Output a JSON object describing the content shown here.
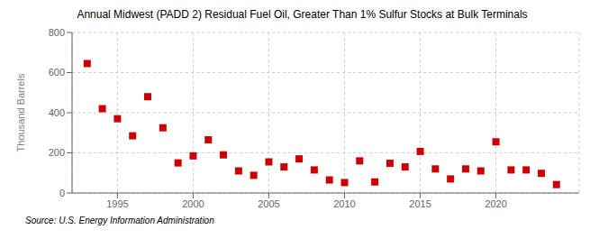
{
  "chart_data": {
    "type": "scatter",
    "title": "Annual Midwest (PADD 2) Residual Fuel Oil, Greater Than 1% Sulfur Stocks at Bulk Terminals",
    "ylabel": "Thousand Barrels",
    "annotations": [
      "Source: U.S. Energy Information Administration"
    ],
    "x": [
      1993,
      1994,
      1995,
      1996,
      1997,
      1998,
      1999,
      2000,
      2001,
      2002,
      2003,
      2004,
      2005,
      2006,
      2007,
      2008,
      2009,
      2010,
      2011,
      2012,
      2013,
      2014,
      2015,
      2016,
      2017,
      2018,
      2019,
      2020,
      2021,
      2022,
      2023,
      2024
    ],
    "values": [
      645,
      420,
      370,
      285,
      480,
      325,
      150,
      185,
      265,
      190,
      110,
      88,
      155,
      130,
      170,
      115,
      65,
      52,
      160,
      55,
      148,
      130,
      207,
      120,
      70,
      120,
      110,
      255,
      115,
      115,
      98,
      42
    ],
    "color": "#cc0000",
    "marker": "square",
    "xlim": [
      1992.0,
      2025.5
    ],
    "xticks": [
      1995,
      2000,
      2005,
      2010,
      2015,
      2020
    ],
    "ylim": [
      0,
      800
    ],
    "yticks": [
      0,
      200,
      400,
      600,
      800
    ],
    "grid": true
  }
}
